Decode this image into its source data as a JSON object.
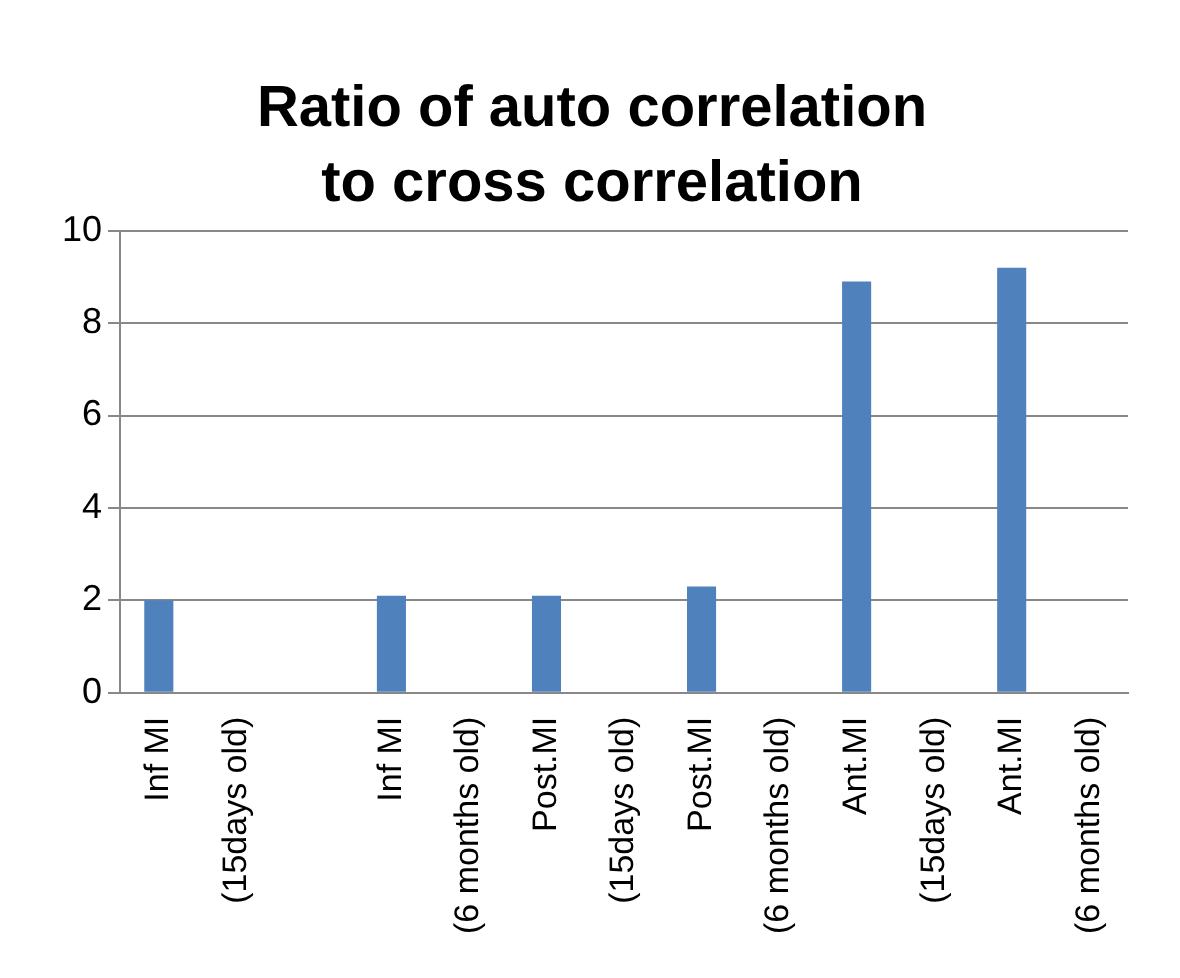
{
  "chart_data": {
    "type": "bar",
    "title": "Ratio of auto correlation to cross correlation",
    "categories": [
      "Inf MI",
      "(15days old)",
      null,
      "Inf MI",
      "(6 months old)",
      "Post.MI",
      "(15days old)",
      "Post.MI",
      "(6 months old)",
      "Ant.MI",
      "(15days old)",
      "Ant.MI",
      "(6 months old)"
    ],
    "values": [
      2.0,
      null,
      null,
      2.1,
      null,
      2.1,
      null,
      2.3,
      null,
      8.9,
      null,
      9.2,
      null
    ],
    "color": "#4f81bd",
    "ylim": [
      0,
      10
    ],
    "yticks": [
      0,
      2,
      4,
      6,
      8,
      10
    ],
    "grid": "y",
    "legend": false
  }
}
